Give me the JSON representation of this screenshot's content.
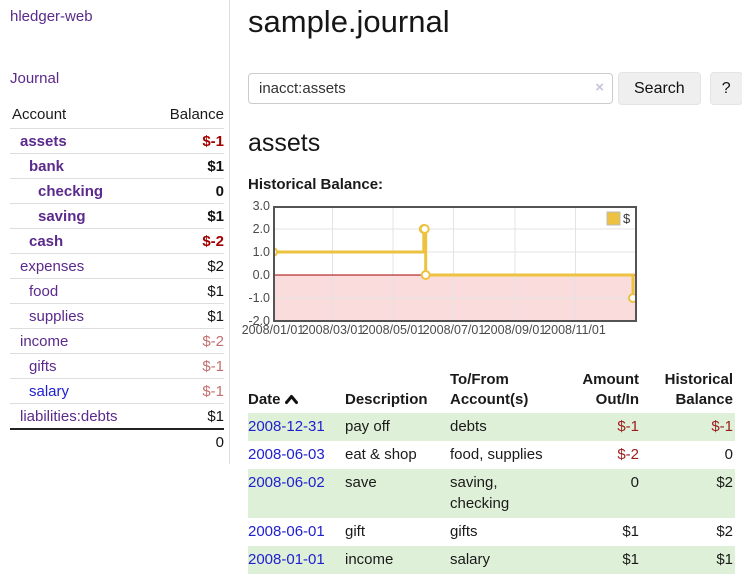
{
  "colors": {
    "link_purple": "#5b2a8c",
    "link_blue": "#2020d0",
    "negative_strong": "#a40000",
    "negative_soft": "#c46f6f",
    "row_stripe_green": "#dff0d8",
    "series_gold": "#edc240",
    "below_zero_fill": "#fbdcdc",
    "zero_line_red": "#a40000",
    "chart_border": "#545454"
  },
  "sidebar": {
    "brand": "hledger-web",
    "journal_link": "Journal",
    "headers": {
      "account": "Account",
      "balance": "Balance"
    },
    "accounts": [
      {
        "name": "assets",
        "balance": "$-1",
        "indent": 0,
        "bold": true,
        "tone": "neg-bold",
        "link": "purple"
      },
      {
        "name": "bank",
        "balance": "$1",
        "indent": 1,
        "bold": true,
        "tone": "bold",
        "link": "purple"
      },
      {
        "name": "checking",
        "balance": "0",
        "indent": 2,
        "bold": true,
        "tone": "bold",
        "link": "purple"
      },
      {
        "name": "saving",
        "balance": "$1",
        "indent": 2,
        "bold": true,
        "tone": "bold",
        "link": "purple"
      },
      {
        "name": "cash",
        "balance": "$-2",
        "indent": 1,
        "bold": true,
        "tone": "neg-bold",
        "link": "purple"
      },
      {
        "name": "expenses",
        "balance": "$2",
        "indent": 0,
        "bold": false,
        "tone": "plain",
        "link": "purple"
      },
      {
        "name": "food",
        "balance": "$1",
        "indent": 1,
        "bold": false,
        "tone": "plain",
        "link": "purple"
      },
      {
        "name": "supplies",
        "balance": "$1",
        "indent": 1,
        "bold": false,
        "tone": "plain",
        "link": "purple"
      },
      {
        "name": "income",
        "balance": "$-2",
        "indent": 0,
        "bold": false,
        "tone": "soft",
        "link": "purple"
      },
      {
        "name": "gifts",
        "balance": "$-1",
        "indent": 1,
        "bold": false,
        "tone": "soft",
        "link": "purple"
      },
      {
        "name": "salary",
        "balance": "$-1",
        "indent": 1,
        "bold": false,
        "tone": "soft",
        "link": "blue"
      },
      {
        "name": "liabilities:debts",
        "balance": "$1",
        "indent": 0,
        "bold": false,
        "tone": "plain",
        "link": "purple"
      }
    ],
    "total": "0"
  },
  "main": {
    "title": "sample.journal",
    "search": {
      "value": "inacct:assets",
      "clear_icon": "×",
      "button_label": "Search",
      "help_label": "?"
    },
    "account_heading": "assets",
    "chart_label": "Historical Balance:",
    "register": {
      "headers": {
        "date": "Date",
        "description": "Description",
        "accounts": "To/From Account(s)",
        "amount": "Amount Out/In",
        "balance": "Historical Balance"
      },
      "rows": [
        {
          "date": "2008-12-31",
          "description": "pay off",
          "accounts": "debts",
          "amount": "$-1",
          "balance": "$-1"
        },
        {
          "date": "2008-06-03",
          "description": "eat & shop",
          "accounts": "food, supplies",
          "amount": "$-2",
          "balance": "0"
        },
        {
          "date": "2008-06-02",
          "description": "save",
          "accounts": "saving, checking",
          "amount": "0",
          "balance": "$2"
        },
        {
          "date": "2008-06-01",
          "description": "gift",
          "accounts": "gifts",
          "amount": "$1",
          "balance": "$2"
        },
        {
          "date": "2008-01-01",
          "description": "income",
          "accounts": "salary",
          "amount": "$1",
          "balance": "$1"
        }
      ]
    }
  },
  "chart_data": {
    "type": "line",
    "step": true,
    "xlim": [
      "2008-01-01",
      "2008-12-31"
    ],
    "ylim": [
      -2,
      3
    ],
    "x_ticks": [
      "2008/01/01",
      "2008/03/01",
      "2008/05/01",
      "2008/07/01",
      "2008/09/01",
      "2008/11/01"
    ],
    "y_ticks": [
      3.0,
      2.0,
      1.0,
      0.0,
      -1.0,
      -2.0
    ],
    "legend": {
      "label": "$",
      "position": "top-right"
    },
    "grid": true,
    "below_zero_shaded": true,
    "series": [
      {
        "name": "$",
        "color": "#edc240",
        "points": [
          [
            "2008-01-01",
            1
          ],
          [
            "2008-06-01",
            2
          ],
          [
            "2008-06-02",
            2
          ],
          [
            "2008-06-03",
            0
          ],
          [
            "2008-12-31",
            -1
          ]
        ]
      }
    ]
  }
}
